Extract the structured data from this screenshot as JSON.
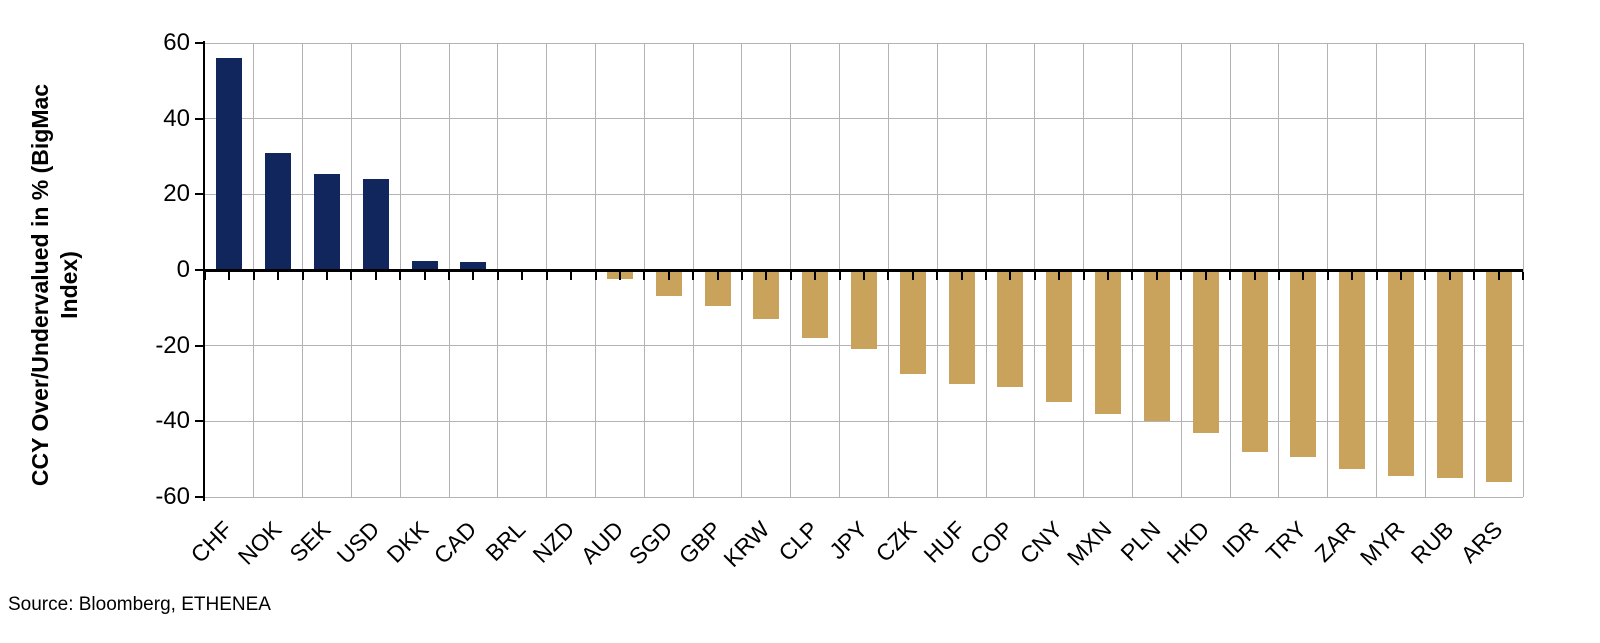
{
  "chart_data": {
    "type": "bar",
    "title": "",
    "xlabel": "",
    "ylabel": "CCY Over/Undervalued in % (BigMac Index)",
    "ylabel_lines": [
      "CCY Over/Undervalued in % (BigMac",
      "Index)"
    ],
    "categories": [
      "CHF",
      "NOK",
      "SEK",
      "USD",
      "DKK",
      "CAD",
      "BRL",
      "NZD",
      "AUD",
      "SGD",
      "GBP",
      "KRW",
      "CLP",
      "JPY",
      "CZK",
      "HUF",
      "COP",
      "CNY",
      "MXN",
      "PLN",
      "HKD",
      "IDR",
      "TRY",
      "ZAR",
      "MYR",
      "RUB",
      "ARS"
    ],
    "values": [
      56,
      31,
      25.5,
      24,
      2.5,
      2,
      0,
      0,
      -2.5,
      -7,
      -9.5,
      -13,
      -18,
      -21,
      -27.5,
      -30,
      -31,
      -35,
      -38,
      -40,
      -43,
      -48,
      -49.5,
      -52.5,
      -54.5,
      -55,
      -56
    ],
    "yticks": [
      60,
      40,
      20,
      0,
      -20,
      -40,
      -60
    ],
    "ylim": [
      -60,
      60
    ],
    "grid": true,
    "legend": "none",
    "colors": {
      "positive": "#11265d",
      "negative": "#c9a35c",
      "gridline": "#b3b3b3",
      "axis": "#000000"
    }
  },
  "source": "Source: Bloomberg, ETHENEA"
}
